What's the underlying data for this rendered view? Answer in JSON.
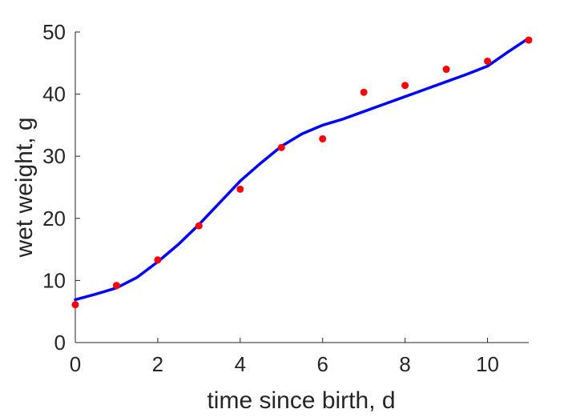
{
  "chart_data": {
    "type": "scatter",
    "title": "",
    "xlabel": "time since birth, d",
    "ylabel": "wet weight, g",
    "xlim": [
      0,
      11
    ],
    "ylim": [
      0,
      50
    ],
    "x_ticks": [
      0,
      2,
      4,
      6,
      8,
      10
    ],
    "y_ticks": [
      0,
      10,
      20,
      30,
      40,
      50
    ],
    "grid": false,
    "legend": "none",
    "series": [
      {
        "type": "scatter",
        "color": "#ff0000",
        "x": [
          0,
          1,
          2,
          3,
          4,
          5,
          6,
          7,
          8,
          9,
          10,
          11
        ],
        "y": [
          6.1,
          9.2,
          13.3,
          18.8,
          24.7,
          31.4,
          32.8,
          40.3,
          41.4,
          44.0,
          45.3,
          48.7
        ]
      },
      {
        "type": "line",
        "color": "#0000ff",
        "x": [
          0,
          0.5,
          1,
          1.5,
          2,
          2.5,
          3,
          3.5,
          4,
          4.5,
          5,
          5.5,
          6,
          6.5,
          7,
          7.5,
          8,
          8.5,
          9,
          9.5,
          10,
          10.5,
          11
        ],
        "y": [
          6.9,
          7.8,
          8.8,
          10.5,
          13.0,
          15.8,
          19.0,
          22.5,
          26.0,
          28.9,
          31.6,
          33.6,
          35.0,
          36.0,
          37.2,
          38.4,
          39.6,
          40.8,
          42.0,
          43.2,
          44.5,
          46.8,
          49.0
        ]
      }
    ]
  }
}
